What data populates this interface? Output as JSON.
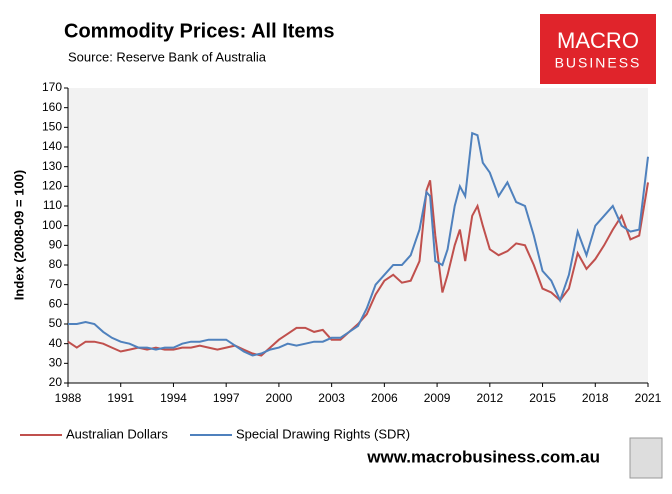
{
  "chart_data": {
    "type": "line",
    "title": "Commodity Prices: All Items",
    "subtitle": "Source: Reserve Bank of Australia",
    "logo": {
      "line1": "MACRO",
      "line2": "BUSINESS"
    },
    "url": "www.macrobusiness.com.au",
    "y_label": "Index (2008-09 = 100)",
    "x": [
      1988,
      1988.5,
      1989,
      1989.5,
      1990,
      1990.5,
      1991,
      1991.5,
      1992,
      1992.5,
      1993,
      1993.5,
      1994,
      1994.5,
      1995,
      1995.5,
      1996,
      1996.5,
      1997,
      1997.5,
      1998,
      1998.5,
      1999,
      1999.5,
      2000,
      2000.5,
      2001,
      2001.5,
      2002,
      2002.5,
      2003,
      2003.5,
      2004,
      2004.5,
      2005,
      2005.5,
      2006,
      2006.5,
      2007,
      2007.5,
      2008,
      2008.4,
      2008.6,
      2008.9,
      2009.3,
      2009.6,
      2010,
      2010.3,
      2010.6,
      2011,
      2011.3,
      2011.6,
      2012,
      2012.5,
      2013,
      2013.5,
      2014,
      2014.5,
      2015,
      2015.5,
      2016,
      2016.5,
      2017,
      2017.5,
      2018,
      2018.5,
      2019,
      2019.5,
      2020,
      2020.5,
      2021
    ],
    "series": [
      {
        "name": "Australian Dollars",
        "color": "#c0504d",
        "values": [
          41,
          38,
          41,
          41,
          40,
          38,
          36,
          37,
          38,
          37,
          38,
          37,
          37,
          38,
          38,
          39,
          38,
          37,
          38,
          39,
          37,
          35,
          34,
          38,
          42,
          45,
          48,
          48,
          46,
          47,
          42,
          42,
          46,
          50,
          55,
          65,
          72,
          75,
          71,
          72,
          82,
          118,
          123,
          95,
          66,
          75,
          90,
          98,
          82,
          105,
          110,
          100,
          88,
          85,
          87,
          91,
          90,
          80,
          68,
          66,
          62,
          68,
          86,
          78,
          83,
          90,
          98,
          105,
          93,
          95,
          122
        ]
      },
      {
        "name": "Special Drawing Rights (SDR)",
        "color": "#4f81bd",
        "values": [
          50,
          50,
          51,
          50,
          46,
          43,
          41,
          40,
          38,
          38,
          37,
          38,
          38,
          40,
          41,
          41,
          42,
          42,
          42,
          39,
          36,
          34,
          35,
          37,
          38,
          40,
          39,
          40,
          41,
          41,
          43,
          43,
          46,
          49,
          58,
          70,
          75,
          80,
          80,
          85,
          98,
          117,
          115,
          82,
          80,
          88,
          110,
          120,
          115,
          147,
          146,
          132,
          127,
          115,
          122,
          112,
          110,
          95,
          77,
          72,
          62,
          75,
          97,
          85,
          100,
          105,
          110,
          100,
          97,
          98,
          135
        ]
      }
    ],
    "xlim": [
      1988,
      2021
    ],
    "xticks": [
      1988,
      1991,
      1994,
      1997,
      2000,
      2003,
      2006,
      2009,
      2012,
      2015,
      2018,
      2021
    ],
    "ylim": [
      20,
      170
    ],
    "yticks": [
      20,
      30,
      40,
      50,
      60,
      70,
      80,
      90,
      100,
      110,
      120,
      130,
      140,
      150,
      160,
      170
    ],
    "grid": false
  }
}
